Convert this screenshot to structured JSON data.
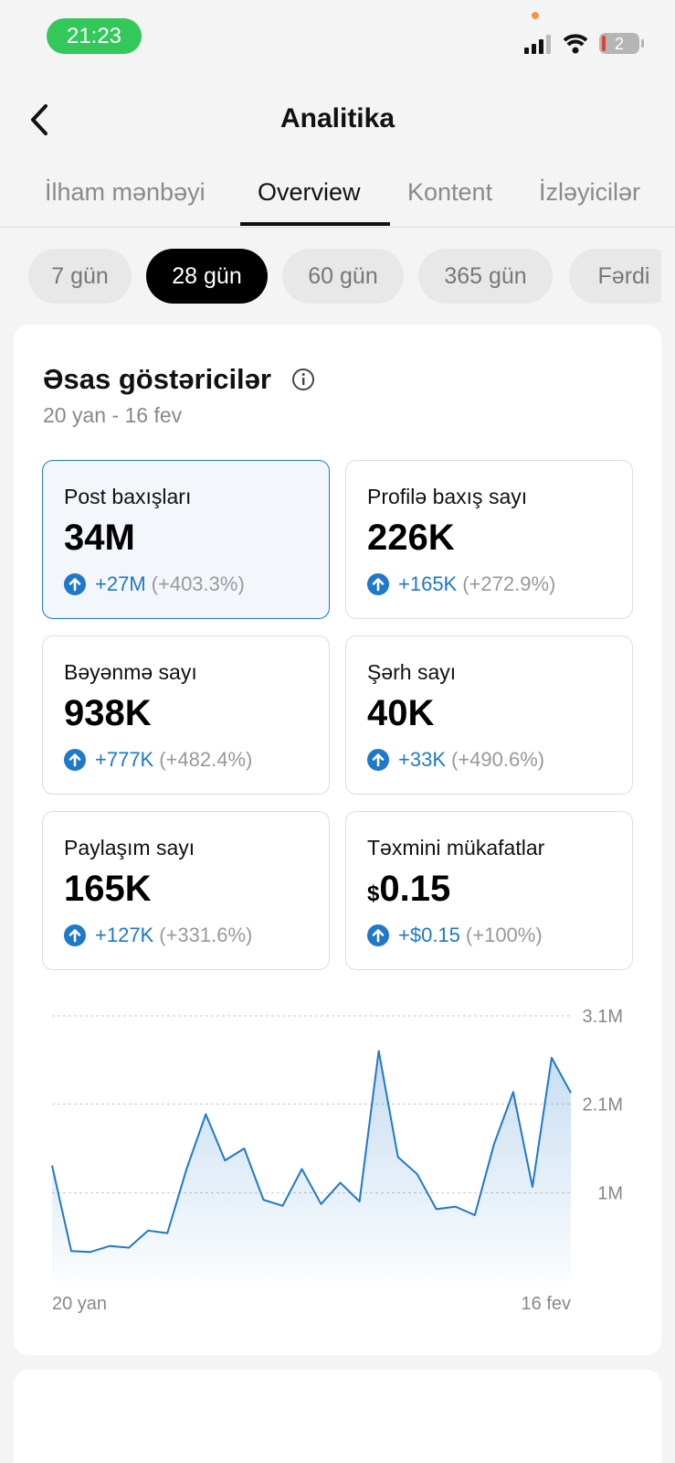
{
  "status_bar": {
    "time": "21:23",
    "battery": "2"
  },
  "header": {
    "title": "Analitika"
  },
  "tabs": [
    "İlham mənbəyi",
    "Overview",
    "Kontent",
    "İzləyicilər"
  ],
  "periods": [
    "7 gün",
    "28 gün",
    "60 gün",
    "365 gün",
    "Fərdi"
  ],
  "section": {
    "title": "Əsas göstəricilər",
    "date_range": "20 yan - 16 fev"
  },
  "metrics": [
    {
      "label": "Post baxışları",
      "value": "34M",
      "change": "+27M",
      "percent": "(+403.3%)"
    },
    {
      "label": "Profilə baxış sayı",
      "value": "226K",
      "change": "+165K",
      "percent": "(+272.9%)"
    },
    {
      "label": "Bəyənmə sayı",
      "value": "938K",
      "change": "+777K",
      "percent": "(+482.4%)"
    },
    {
      "label": "Şərh sayı",
      "value": "40K",
      "change": "+33K",
      "percent": "(+490.6%)"
    },
    {
      "label": "Paylaşım sayı",
      "value": "165K",
      "change": "+127K",
      "percent": "(+331.6%)"
    },
    {
      "label": "Təxmini mükafatlar",
      "currency": "$",
      "value": "0.15",
      "change": "+$0.15",
      "percent": "(+100%)"
    }
  ],
  "chart_data": {
    "type": "area",
    "categories": [
      "20 yan",
      null,
      null,
      null,
      null,
      null,
      null,
      null,
      null,
      null,
      null,
      null,
      null,
      null,
      null,
      null,
      null,
      null,
      null,
      null,
      null,
      null,
      null,
      null,
      null,
      null,
      null,
      "16 fev"
    ],
    "values": [
      1350000,
      350000,
      340000,
      410000,
      390000,
      590000,
      560000,
      1310000,
      1950000,
      1410000,
      1550000,
      950000,
      880000,
      1310000,
      900000,
      1150000,
      930000,
      2690000,
      1450000,
      1250000,
      840000,
      870000,
      770000,
      1600000,
      2210000,
      1100000,
      2610000,
      2200000
    ],
    "color": "#1f78c8",
    "ylim": [
      0,
      3100000
    ],
    "yticks": [
      {
        "value": 1030000,
        "label": "1M"
      },
      {
        "value": 2070000,
        "label": "2.1M"
      },
      {
        "value": 3100000,
        "label": "3.1M"
      }
    ],
    "grid": true
  }
}
